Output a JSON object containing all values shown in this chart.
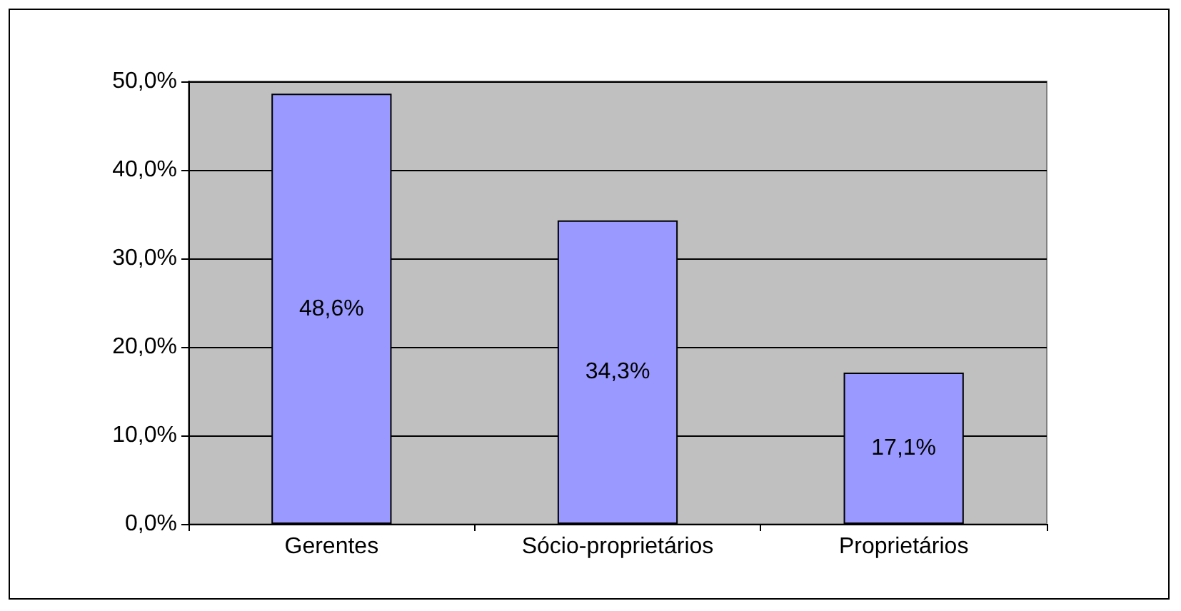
{
  "chart_data": {
    "type": "bar",
    "categories": [
      "Gerentes",
      "Sócio-proprietários",
      "Proprietários"
    ],
    "values": [
      48.6,
      34.3,
      17.1
    ],
    "color": "#9999ff",
    "value_labels": [
      "48,6%",
      "34,3%",
      "17,1%"
    ],
    "ylim": [
      0,
      50
    ],
    "yticks": [
      {
        "value": 0,
        "label": "0,0%"
      },
      {
        "value": 10,
        "label": "10,0%"
      },
      {
        "value": 20,
        "label": "20,0%"
      },
      {
        "value": 30,
        "label": "30,0%"
      },
      {
        "value": 40,
        "label": "40,0%"
      },
      {
        "value": 50,
        "label": "50,0%"
      }
    ],
    "grid": "y"
  }
}
